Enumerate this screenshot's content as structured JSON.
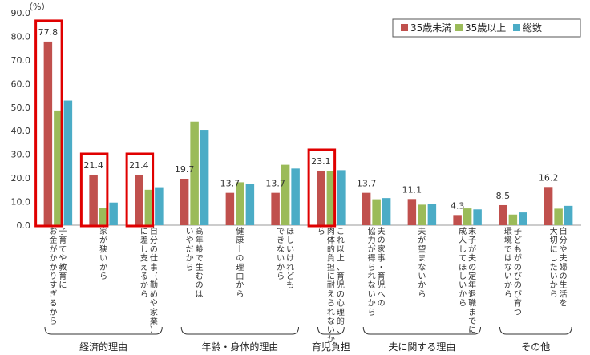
{
  "chart_data": {
    "type": "bar",
    "unit_label": "（%）",
    "ylim": [
      0,
      90
    ],
    "yticks": [
      "0.0",
      "10.0",
      "20.0",
      "30.0",
      "40.0",
      "50.0",
      "60.0",
      "70.0",
      "80.0",
      "90.0"
    ],
    "categories": [
      [
        "子育てや教育に",
        "お金がかかりすぎるから"
      ],
      [
        "家が狭いから"
      ],
      [
        "自分の仕事（勤めや家業）",
        "に差し支えるから"
      ],
      [
        "高年齢で生むのは",
        "いやだから"
      ],
      [
        "健康上の理由から"
      ],
      [
        "ほしいけれども",
        "できないから"
      ],
      [
        "これ以上、育児の心理的、",
        "肉体的負担に耐えられないか",
        "ら"
      ],
      [
        "夫の家事・育児への",
        "協力が得られないから"
      ],
      [
        "夫が望まないから"
      ],
      [
        "末子が夫の定年退職までに",
        "成人してほしいから"
      ],
      [
        "子どもがのびのび育つ",
        "環境ではないから"
      ],
      [
        "自分や夫婦の生活を",
        "大切にしたいから"
      ]
    ],
    "series": [
      {
        "name": "35歳未満",
        "color": "#C0504D",
        "values": [
          77.8,
          21.4,
          21.4,
          19.7,
          13.7,
          13.7,
          23.1,
          13.7,
          11.1,
          4.3,
          8.5,
          16.2
        ]
      },
      {
        "name": "35歳以上",
        "color": "#9BBB59",
        "values": [
          48.6,
          7.4,
          15.0,
          43.9,
          18.2,
          25.6,
          22.8,
          11.0,
          8.7,
          7.1,
          4.5,
          7.0
        ]
      },
      {
        "name": "総数",
        "color": "#4BACC6",
        "values": [
          52.8,
          9.6,
          16.1,
          40.4,
          17.5,
          24.0,
          23.3,
          11.5,
          9.1,
          6.7,
          5.4,
          8.2
        ]
      }
    ],
    "data_labels": [
      "77.8",
      "21.4",
      "21.4",
      "19.7",
      "13.7",
      "13.7",
      "23.1",
      "13.7",
      "11.1",
      "4.3",
      "8.5",
      "16.2"
    ],
    "highlighted_series": "35歳未満",
    "highlighted_categories": [
      0,
      1,
      2,
      6
    ],
    "groups": [
      {
        "label": "経済的理由",
        "range": [
          0,
          2
        ]
      },
      {
        "label": "年齢・身体的理由",
        "range": [
          3,
          5
        ]
      },
      {
        "label": "育児負担",
        "range": [
          6,
          6
        ]
      },
      {
        "label": "夫に関する理由",
        "range": [
          7,
          9
        ]
      },
      {
        "label": "その他",
        "range": [
          10,
          11
        ]
      }
    ]
  }
}
